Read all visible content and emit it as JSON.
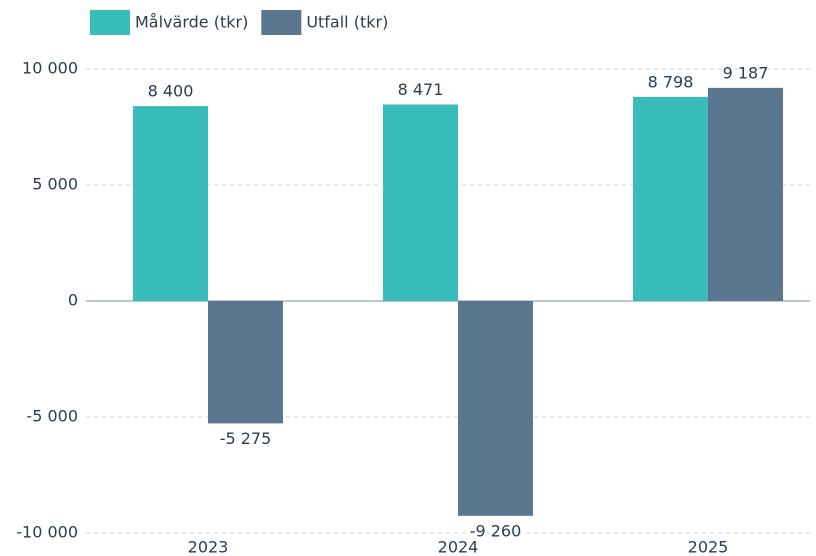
{
  "chart_data": {
    "type": "bar",
    "categories": [
      "2023",
      "2024",
      "2025"
    ],
    "series": [
      {
        "name": "Målvärde (tkr)",
        "color": "#38bdbc",
        "values": [
          8400,
          8471,
          8798
        ],
        "value_labels": [
          "8 400",
          "8 471",
          "8 798"
        ]
      },
      {
        "name": "Utfall (tkr)",
        "color": "#5b778f",
        "values": [
          -5275,
          -9260,
          9187
        ],
        "value_labels": [
          "-5 275",
          "-9 260",
          "9 187"
        ]
      }
    ],
    "ylim": [
      -10000,
      10000
    ],
    "yticks": [
      {
        "value": -10000,
        "label": "-10 000"
      },
      {
        "value": -5000,
        "label": "-5 000"
      },
      0,
      {
        "value": 5000,
        "label": "5 000"
      },
      {
        "value": 10000,
        "label": "10 000"
      }
    ],
    "grid": true,
    "legend": "top-left"
  }
}
